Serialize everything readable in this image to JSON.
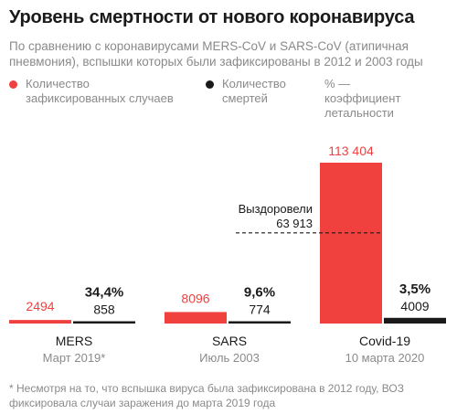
{
  "title": "Уровень смертности от нового коронавируса",
  "subtitle": "По сравнению с коронавирусами MERS-CoV и SARS-CoV (атипичная пневмония), вспышки которых были зафиксированы в 2012 и 2003 годы",
  "legend": {
    "cases": "Количество зафиксированных случаев",
    "deaths": "Количество смертей",
    "rate": "% — коэффициент летальности"
  },
  "colors": {
    "cases": "#f0413f",
    "deaths": "#1a1a1a",
    "muted": "#8a8a8a"
  },
  "chart_data": {
    "type": "bar",
    "categories": [
      "MERS",
      "SARS",
      "Covid-19"
    ],
    "dates": [
      "Март 2019*",
      "Июль 2003",
      "10 марта 2020"
    ],
    "series": [
      {
        "name": "Количество зафиксированных случаев",
        "values": [
          2494,
          8096,
          113404
        ],
        "labels": [
          "2494",
          "8096",
          "113 404"
        ]
      },
      {
        "name": "Количество смертей",
        "values": [
          858,
          774,
          4009
        ],
        "labels": [
          "858",
          "774",
          "4009"
        ]
      }
    ],
    "rates": [
      "34,4%",
      "9,6%",
      "3,5%"
    ],
    "annotation": {
      "label": "Выздоровели",
      "value_label": "63 913",
      "value": 63913
    }
  },
  "footnote": "* Несмотря на то, что вспышка вируса была зафиксирована в 2012 году, ВОЗ фиксировала случаи заражения до марта 2019 года"
}
